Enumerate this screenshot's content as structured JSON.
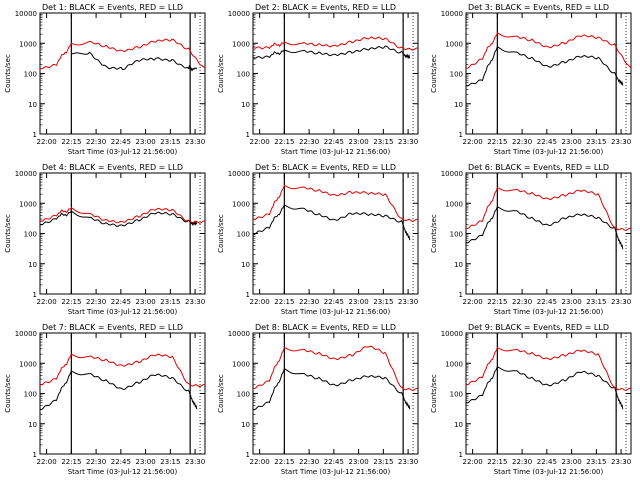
{
  "figure": {
    "xlabel": "Start Time (03-Jul-12 21:56:00)",
    "ylabel": "Counts/sec",
    "x_ticks": [
      "22:00",
      "22:15",
      "22:30",
      "22:45",
      "23:00",
      "23:15",
      "23:30"
    ],
    "y_ticks": [
      "1",
      "10",
      "100",
      "1000",
      "10000"
    ],
    "colors": {
      "events": "#000000",
      "lld": "#e00000",
      "axes": "#000000"
    }
  },
  "chart_data": [
    {
      "type": "line",
      "title": "Det 1: BLACK = Events, RED = LLD",
      "xlabel": "Start Time (03-Jul-12 21:56:00)",
      "ylabel": "Counts/sec",
      "scale": "log",
      "ylim": [
        1,
        10000
      ],
      "xlim_minutes": [
        0,
        100
      ],
      "series": [
        {
          "name": "Events",
          "color": "#000000",
          "x": [
            19,
            30,
            40,
            50,
            60,
            70,
            80,
            90,
            95
          ],
          "values": [
            400,
            480,
            180,
            140,
            250,
            300,
            300,
            150,
            140
          ]
        },
        {
          "name": "LLD",
          "color": "#e00000",
          "x": [
            0,
            10,
            19,
            30,
            40,
            50,
            60,
            70,
            80,
            90,
            100
          ],
          "values": [
            150,
            220,
            900,
            1000,
            750,
            600,
            800,
            1100,
            1200,
            650,
            150
          ]
        }
      ]
    },
    {
      "type": "line",
      "title": "Det 2: BLACK = Events, RED = LLD",
      "xlabel": "Start Time (03-Jul-12 21:56:00)",
      "ylabel": "Counts/sec",
      "scale": "log",
      "ylim": [
        1,
        10000
      ],
      "xlim_minutes": [
        0,
        100
      ],
      "series": [
        {
          "name": "Events",
          "color": "#000000",
          "x": [
            0,
            10,
            19,
            30,
            40,
            50,
            60,
            70,
            80,
            90,
            95
          ],
          "values": [
            350,
            400,
            550,
            500,
            450,
            450,
            550,
            600,
            700,
            500,
            320
          ]
        },
        {
          "name": "LLD",
          "color": "#e00000",
          "x": [
            0,
            10,
            19,
            30,
            40,
            50,
            60,
            70,
            80,
            90,
            100
          ],
          "values": [
            750,
            800,
            1000,
            900,
            850,
            900,
            1200,
            1400,
            1300,
            700,
            700
          ]
        }
      ]
    },
    {
      "type": "line",
      "title": "Det 3: BLACK = Events, RED = LLD",
      "xlabel": "Start Time (03-Jul-12 21:56:00)",
      "ylabel": "Counts/sec",
      "scale": "log",
      "ylim": [
        1,
        10000
      ],
      "xlim_minutes": [
        0,
        100
      ],
      "series": [
        {
          "name": "Events",
          "color": "#000000",
          "x": [
            0,
            10,
            19,
            30,
            40,
            50,
            60,
            70,
            80,
            90,
            95
          ],
          "values": [
            40,
            70,
            700,
            450,
            300,
            180,
            260,
            350,
            300,
            100,
            40
          ]
        },
        {
          "name": "LLD",
          "color": "#e00000",
          "x": [
            0,
            10,
            19,
            30,
            40,
            50,
            60,
            70,
            80,
            90,
            100
          ],
          "values": [
            150,
            350,
            2000,
            1500,
            1200,
            800,
            1100,
            1700,
            1400,
            900,
            150
          ]
        }
      ]
    },
    {
      "type": "line",
      "title": "Det 4: BLACK = Events, RED = LLD",
      "xlabel": "Start Time (03-Jul-12 21:56:00)",
      "ylabel": "Counts/sec",
      "scale": "log",
      "ylim": [
        1,
        10000
      ],
      "xlim_minutes": [
        0,
        100
      ],
      "series": [
        {
          "name": "Events",
          "color": "#000000",
          "x": [
            0,
            10,
            19,
            30,
            40,
            50,
            60,
            70,
            80,
            90,
            95
          ],
          "values": [
            200,
            350,
            500,
            300,
            200,
            200,
            300,
            450,
            400,
            250,
            200
          ]
        },
        {
          "name": "LLD",
          "color": "#e00000",
          "x": [
            0,
            10,
            19,
            30,
            40,
            50,
            60,
            70,
            80,
            90,
            100
          ],
          "values": [
            260,
            450,
            650,
            400,
            260,
            260,
            400,
            600,
            550,
            260,
            260
          ]
        }
      ]
    },
    {
      "type": "line",
      "title": "Det 5: BLACK = Events, RED = LLD",
      "xlabel": "Start Time (03-Jul-12 21:56:00)",
      "ylabel": "Counts/sec",
      "scale": "log",
      "ylim": [
        1,
        10000
      ],
      "xlim_minutes": [
        0,
        100
      ],
      "series": [
        {
          "name": "Events",
          "color": "#000000",
          "x": [
            0,
            10,
            19,
            30,
            40,
            50,
            60,
            70,
            80,
            90,
            95
          ],
          "values": [
            100,
            180,
            800,
            600,
            400,
            300,
            500,
            400,
            350,
            250,
            60
          ]
        },
        {
          "name": "LLD",
          "color": "#e00000",
          "x": [
            0,
            10,
            19,
            30,
            40,
            50,
            60,
            70,
            80,
            90,
            100
          ],
          "values": [
            300,
            500,
            3500,
            3000,
            2500,
            2000,
            2500,
            2000,
            1800,
            300,
            300
          ]
        }
      ]
    },
    {
      "type": "line",
      "title": "Det 6: BLACK = Events, RED = LLD",
      "xlabel": "Start Time (03-Jul-12 21:56:00)",
      "ylabel": "Counts/sec",
      "scale": "log",
      "ylim": [
        1,
        10000
      ],
      "xlim_minutes": [
        0,
        100
      ],
      "series": [
        {
          "name": "Events",
          "color": "#000000",
          "x": [
            0,
            10,
            19,
            30,
            40,
            50,
            60,
            70,
            80,
            90,
            95
          ],
          "values": [
            50,
            100,
            700,
            500,
            300,
            200,
            350,
            400,
            300,
            150,
            30
          ]
        },
        {
          "name": "LLD",
          "color": "#e00000",
          "x": [
            0,
            10,
            19,
            30,
            40,
            50,
            60,
            70,
            80,
            90,
            100
          ],
          "values": [
            150,
            300,
            3000,
            2500,
            2000,
            1500,
            2000,
            2500,
            1800,
            150,
            150
          ]
        }
      ]
    },
    {
      "type": "line",
      "title": "Det 7: BLACK = Events, RED = LLD",
      "xlabel": "Start Time (03-Jul-12 21:56:00)",
      "ylabel": "Counts/sec",
      "scale": "log",
      "ylim": [
        1,
        10000
      ],
      "xlim_minutes": [
        0,
        100
      ],
      "series": [
        {
          "name": "Events",
          "color": "#000000",
          "x": [
            0,
            10,
            19,
            30,
            40,
            50,
            60,
            70,
            80,
            90,
            95
          ],
          "values": [
            30,
            70,
            500,
            400,
            250,
            150,
            250,
            400,
            300,
            120,
            30
          ]
        },
        {
          "name": "LLD",
          "color": "#e00000",
          "x": [
            0,
            10,
            19,
            30,
            40,
            50,
            60,
            70,
            80,
            90,
            100
          ],
          "values": [
            200,
            350,
            1800,
            1500,
            1200,
            900,
            1200,
            1800,
            1500,
            200,
            200
          ]
        }
      ]
    },
    {
      "type": "line",
      "title": "Det 8: BLACK = Events, RED = LLD",
      "xlabel": "Start Time (03-Jul-12 21:56:00)",
      "ylabel": "Counts/sec",
      "scale": "log",
      "ylim": [
        1,
        10000
      ],
      "xlim_minutes": [
        0,
        100
      ],
      "series": [
        {
          "name": "Events",
          "color": "#000000",
          "x": [
            0,
            10,
            19,
            30,
            40,
            50,
            60,
            70,
            80,
            90,
            95
          ],
          "values": [
            30,
            60,
            600,
            400,
            300,
            200,
            300,
            350,
            300,
            100,
            30
          ]
        },
        {
          "name": "LLD",
          "color": "#e00000",
          "x": [
            0,
            10,
            19,
            30,
            40,
            50,
            60,
            70,
            80,
            90,
            100
          ],
          "values": [
            150,
            300,
            3000,
            2500,
            2000,
            1500,
            2000,
            3500,
            2000,
            150,
            150
          ]
        }
      ]
    },
    {
      "type": "line",
      "title": "Det 9: BLACK = Events, RED = LLD",
      "xlabel": "Start Time (03-Jul-12 21:56:00)",
      "ylabel": "Counts/sec",
      "scale": "log",
      "ylim": [
        1,
        10000
      ],
      "xlim_minutes": [
        0,
        100
      ],
      "series": [
        {
          "name": "Events",
          "color": "#000000",
          "x": [
            0,
            10,
            19,
            30,
            40,
            50,
            60,
            70,
            80,
            90,
            95
          ],
          "values": [
            50,
            100,
            700,
            500,
            300,
            200,
            300,
            500,
            350,
            150,
            30
          ]
        },
        {
          "name": "LLD",
          "color": "#e00000",
          "x": [
            0,
            10,
            19,
            30,
            40,
            50,
            60,
            70,
            80,
            90,
            100
          ],
          "values": [
            200,
            400,
            3000,
            2500,
            2000,
            1500,
            2000,
            2500,
            1800,
            150,
            150
          ]
        }
      ]
    }
  ]
}
